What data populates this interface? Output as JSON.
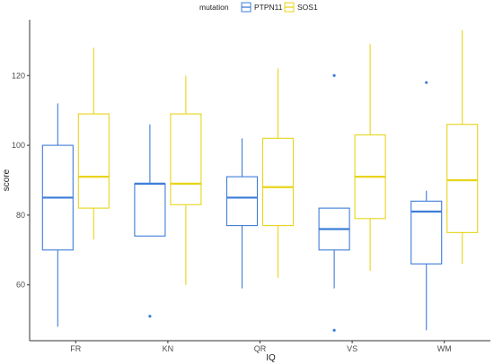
{
  "chart_data": {
    "type": "box",
    "xlabel": "IQ",
    "ylabel": "score",
    "categories": [
      "FR",
      "KN",
      "QR",
      "VS",
      "WM"
    ],
    "ylim": [
      44,
      136
    ],
    "yticks": [
      60,
      80,
      100,
      120
    ],
    "grid": false,
    "legend": {
      "title": "mutation",
      "position": "top"
    },
    "series": [
      {
        "name": "PTPN11",
        "color": "#3d7dd8",
        "boxes": [
          {
            "category": "FR",
            "lower_whisker": 48,
            "q1": 70,
            "median": 85,
            "q3": 100,
            "upper_whisker": 112,
            "outliers": []
          },
          {
            "category": "KN",
            "lower_whisker": 74,
            "q1": 74,
            "median": 89,
            "q3": 89,
            "upper_whisker": 106,
            "outliers": [
              51
            ]
          },
          {
            "category": "QR",
            "lower_whisker": 59,
            "q1": 77,
            "median": 85,
            "q3": 91,
            "upper_whisker": 102,
            "outliers": []
          },
          {
            "category": "VS",
            "lower_whisker": 59,
            "q1": 70,
            "median": 76,
            "q3": 82,
            "upper_whisker": 82,
            "outliers": [
              120,
              47
            ]
          },
          {
            "category": "WM",
            "lower_whisker": 47,
            "q1": 66,
            "median": 81,
            "q3": 84,
            "upper_whisker": 87,
            "outliers": [
              118
            ]
          }
        ]
      },
      {
        "name": "SOS1",
        "color": "#e8d41a",
        "boxes": [
          {
            "category": "FR",
            "lower_whisker": 73,
            "q1": 82,
            "median": 91,
            "q3": 109,
            "upper_whisker": 128,
            "outliers": []
          },
          {
            "category": "KN",
            "lower_whisker": 60,
            "q1": 83,
            "median": 89,
            "q3": 109,
            "upper_whisker": 120,
            "outliers": []
          },
          {
            "category": "QR",
            "lower_whisker": 62,
            "q1": 77,
            "median": 88,
            "q3": 102,
            "upper_whisker": 122,
            "outliers": []
          },
          {
            "category": "VS",
            "lower_whisker": 64,
            "q1": 79,
            "median": 91,
            "q3": 103,
            "upper_whisker": 129,
            "outliers": []
          },
          {
            "category": "WM",
            "lower_whisker": 66,
            "q1": 75,
            "median": 90,
            "q3": 106,
            "upper_whisker": 133,
            "outliers": []
          }
        ]
      }
    ]
  }
}
